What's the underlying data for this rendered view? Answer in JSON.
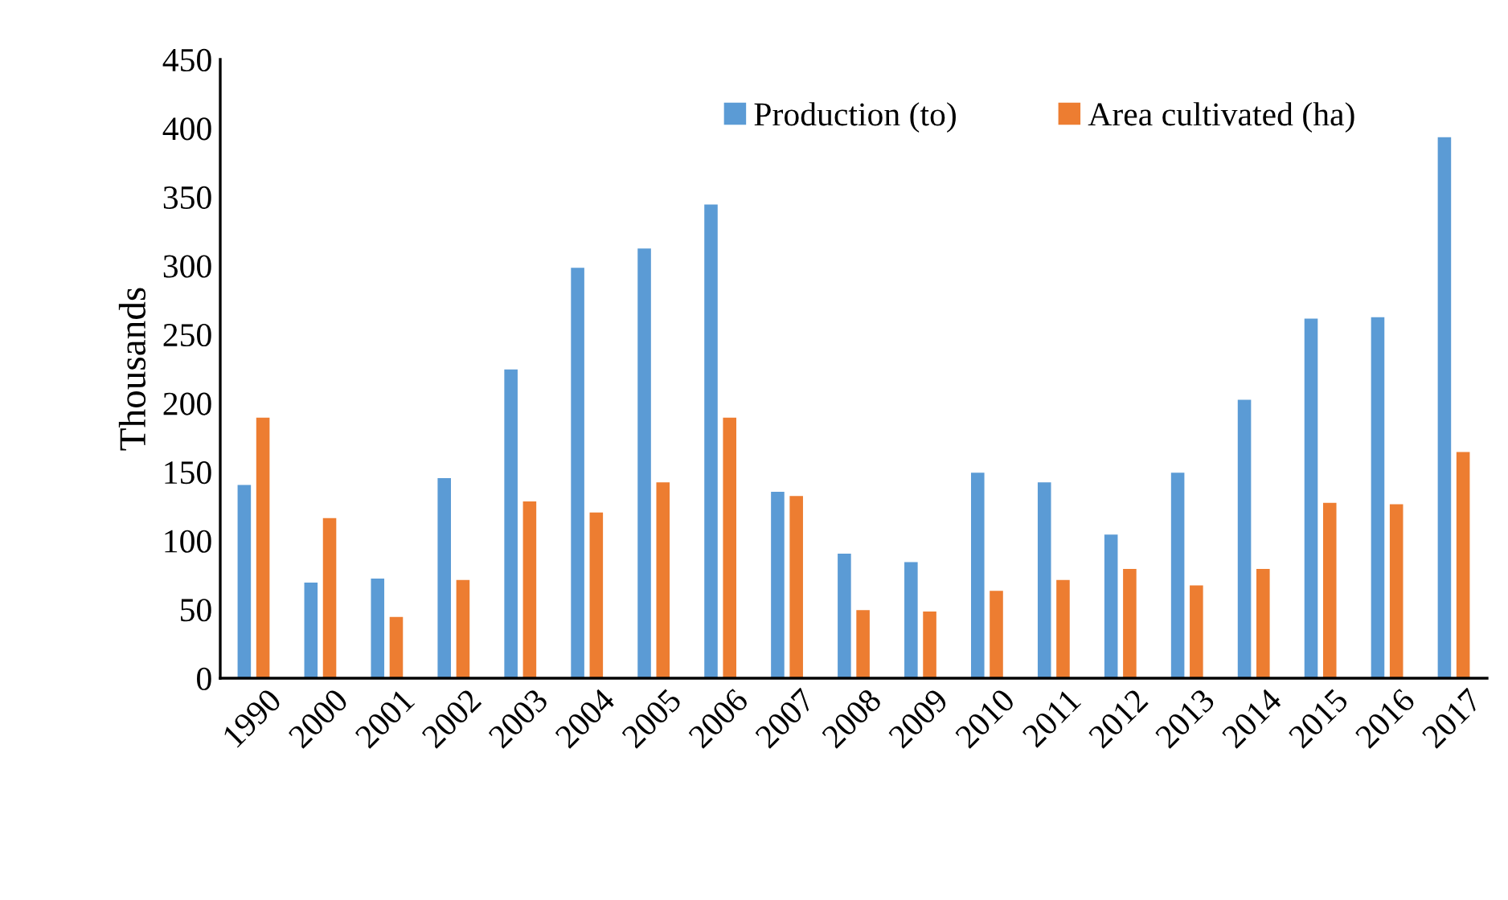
{
  "chart_data": {
    "type": "bar",
    "ylabel": "Thousands",
    "categories": [
      "1990",
      "2000",
      "2001",
      "2002",
      "2003",
      "2004",
      "2005",
      "2006",
      "2007",
      "2008",
      "2009",
      "2010",
      "2011",
      "2012",
      "2013",
      "2014",
      "2015",
      "2016",
      "2017"
    ],
    "series": [
      {
        "name": "Production (to)",
        "color": "#5b9bd5",
        "values": [
          141,
          70,
          73,
          146,
          225,
          299,
          313,
          345,
          136,
          91,
          85,
          150,
          143,
          105,
          150,
          203,
          262,
          263,
          394
        ]
      },
      {
        "name": "Area cultivated (ha)",
        "color": "#ed7d31",
        "values": [
          190,
          117,
          45,
          72,
          129,
          121,
          143,
          190,
          133,
          50,
          49,
          64,
          72,
          80,
          68,
          80,
          128,
          127,
          165
        ]
      }
    ],
    "ylim": [
      0,
      450
    ],
    "yticks": [
      0,
      50,
      100,
      150,
      200,
      250,
      300,
      350,
      400,
      450
    ],
    "grid": false,
    "legend": "top right"
  }
}
